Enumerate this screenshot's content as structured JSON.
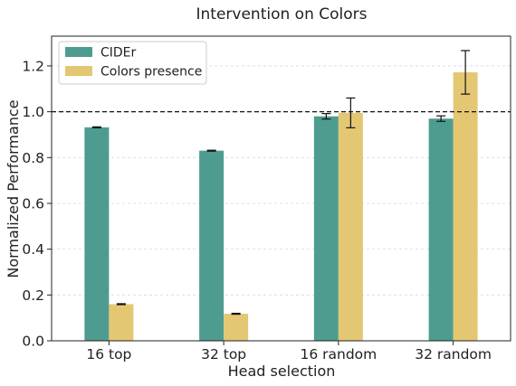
{
  "chart_data": {
    "type": "bar",
    "title": "Intervention on Colors",
    "xlabel": "Head selection",
    "ylabel": "Normalized Performance",
    "categories": [
      "16 top",
      "32 top",
      "16 random",
      "32 random"
    ],
    "ylim": [
      0,
      1.33
    ],
    "yticks": [
      0.0,
      0.2,
      0.4,
      0.6,
      0.8,
      1.0,
      1.2
    ],
    "ytick_labels": [
      "0.0",
      "0.2",
      "0.4",
      "0.6",
      "0.8",
      "1.0",
      "1.2"
    ],
    "reference_line": 1.0,
    "grid": "horizontal-dashed",
    "legend_position": "top-left",
    "series": [
      {
        "name": "CIDEr",
        "color": "#4e9c8f",
        "values": [
          0.932,
          0.83,
          0.98,
          0.97
        ],
        "errors": [
          0.002,
          0.002,
          0.012,
          0.012
        ]
      },
      {
        "name": "Colors presence",
        "color": "#e4c773",
        "values": [
          0.16,
          0.118,
          0.995,
          1.172
        ],
        "errors": [
          0.002,
          0.002,
          0.065,
          0.095
        ]
      }
    ]
  }
}
